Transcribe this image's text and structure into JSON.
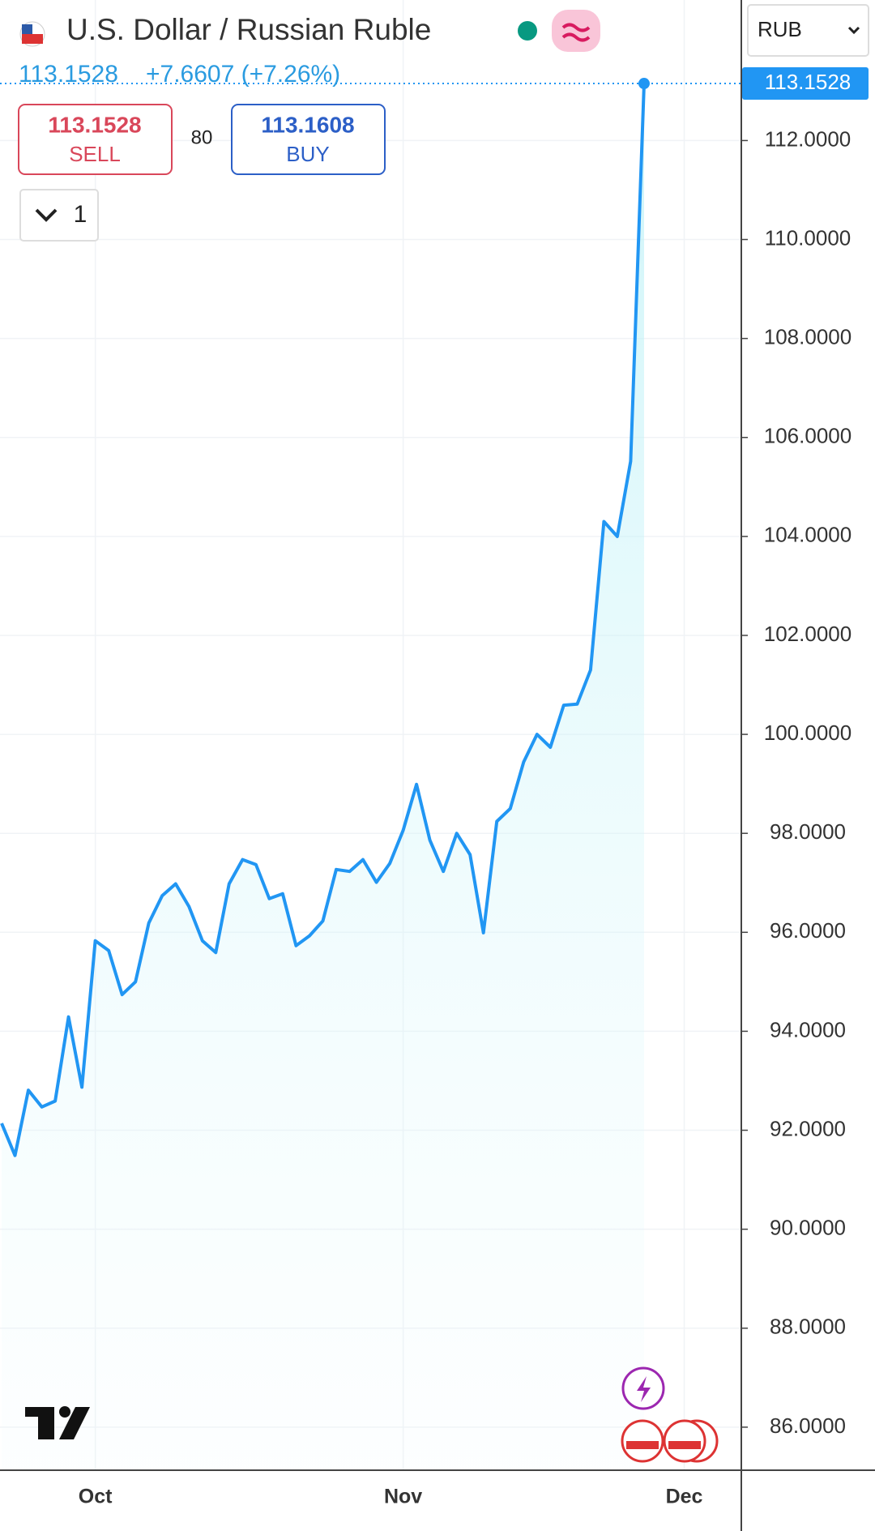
{
  "header": {
    "title": "U.S. Dollar / Russian Ruble",
    "change": "+7.6607 (+7.26%)",
    "sell_price": "113.1528",
    "sell_label": "SELL",
    "spread": "80",
    "buy_price": "113.1608",
    "buy_label": "BUY",
    "interval": "1",
    "currency": "RUB"
  },
  "chart_data": {
    "type": "line",
    "categories": [
      null,
      null,
      null,
      null,
      null,
      null,
      null,
      "Oct",
      null,
      null,
      null,
      null,
      null,
      null,
      null,
      null,
      null,
      null,
      null,
      null,
      null,
      null,
      null,
      null,
      null,
      null,
      null,
      null,
      null,
      null,
      "Nov",
      null,
      null,
      null,
      null,
      null,
      null,
      null,
      null,
      null,
      null,
      null,
      null,
      null,
      null,
      null,
      null,
      null,
      null,
      null,
      null,
      "Dec"
    ],
    "values": [
      92.14,
      91.49,
      92.81,
      92.47,
      92.59,
      94.29,
      92.87,
      95.83,
      95.63,
      94.74,
      95.0,
      96.19,
      96.74,
      96.98,
      96.52,
      95.83,
      95.59,
      96.98,
      97.47,
      97.37,
      96.68,
      96.78,
      95.73,
      95.93,
      96.23,
      97.27,
      97.23,
      97.47,
      97.01,
      97.39,
      98.06,
      98.99,
      97.86,
      97.23,
      98.0,
      97.57,
      95.99,
      98.24,
      98.5,
      99.44,
      100.0,
      99.74,
      100.59,
      100.61,
      101.3,
      104.3,
      104.0,
      105.52,
      113.1528,
      null,
      null,
      null
    ],
    "color": "#2196f3",
    "ylim": [
      85.13,
      114.84
    ],
    "yticks": [
      {
        "value": 86,
        "label": "86.0000"
      },
      {
        "value": 88,
        "label": "88.0000"
      },
      {
        "value": 90,
        "label": "90.0000"
      },
      {
        "value": 92,
        "label": "92.0000"
      },
      {
        "value": 94,
        "label": "94.0000"
      },
      {
        "value": 96,
        "label": "96.0000"
      },
      {
        "value": 98,
        "label": "98.0000"
      },
      {
        "value": 100,
        "label": "100.0000"
      },
      {
        "value": 102,
        "label": "102.0000"
      },
      {
        "value": 104,
        "label": "104.0000"
      },
      {
        "value": 106,
        "label": "106.0000"
      },
      {
        "value": 108,
        "label": "108.0000"
      },
      {
        "value": 110,
        "label": "110.0000"
      },
      {
        "value": 112,
        "label": "112.0000"
      }
    ],
    "grid": true
  }
}
